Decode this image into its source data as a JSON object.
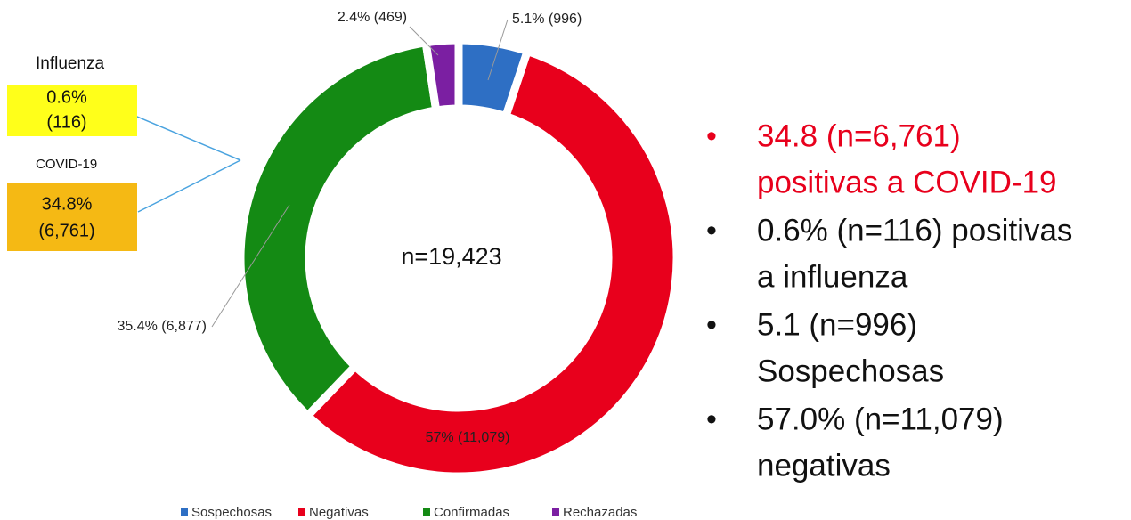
{
  "chart_data": {
    "type": "pie",
    "donut": true,
    "categories": [
      "Sospechosas",
      "Negativas",
      "Confirmadas",
      "Rechazadas"
    ],
    "values": [
      5.1,
      57,
      35.4,
      2.4
    ],
    "value_labels": [
      "5.1% (996)",
      "57% (11,079)",
      "35.4% (6,877)",
      "2.4% (469)"
    ],
    "colors": [
      "#2e6fc4",
      "#e8001c",
      "#148a14",
      "#7b1fa2"
    ],
    "center_label": "n=19,423",
    "legend": "bottom"
  },
  "side_boxes": [
    {
      "title": "Influenza",
      "value": "0.6%",
      "count": "(116)",
      "color": "#ffff1a"
    },
    {
      "title": "COVID-19",
      "value": "34.8%",
      "count": "(6,761)",
      "color": "#f5b914"
    }
  ],
  "bullets": [
    {
      "lines": [
        "34.8 (n=6,761)",
        "positivas a COVID-19"
      ],
      "color": "#e8001c"
    },
    {
      "lines": [
        "0.6% (n=116) positivas",
        "a influenza"
      ],
      "color": "#111111"
    },
    {
      "lines": [
        "5.1 (n=996)",
        "Sospechosas"
      ],
      "color": "#111111"
    },
    {
      "lines": [
        "57.0% (n=11,079)",
        "negativas"
      ],
      "color": "#111111"
    }
  ]
}
